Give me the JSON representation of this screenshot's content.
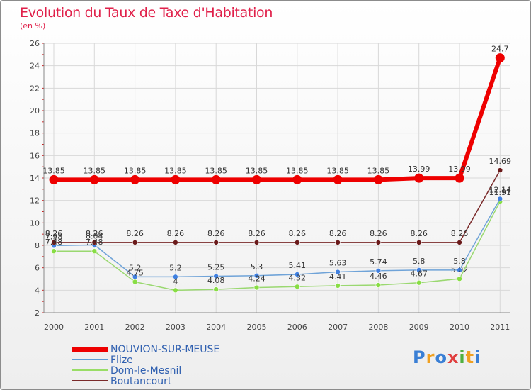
{
  "chart_data": {
    "type": "line",
    "title": "Evolution du Taux de Taxe d'Habitation",
    "unit_label": "(en %)",
    "x": [
      "2000",
      "2001",
      "2002",
      "2003",
      "2004",
      "2005",
      "2006",
      "2007",
      "2008",
      "2009",
      "2010",
      "2011"
    ],
    "ylim": [
      2,
      26
    ],
    "yticks": [
      "2",
      "4",
      "6",
      "8",
      "10",
      "12",
      "14",
      "16",
      "18",
      "20",
      "22",
      "24",
      "26"
    ],
    "grid": true,
    "legend_position": "bottom-left",
    "series": [
      {
        "name": "NOUVION-SUR-MEUSE",
        "color": "#ee0000",
        "values": [
          13.85,
          13.85,
          13.85,
          13.85,
          13.85,
          13.85,
          13.85,
          13.85,
          13.85,
          13.99,
          13.99,
          24.7
        ],
        "labels": [
          "13.85",
          "13.85",
          "13.85",
          "13.85",
          "13.85",
          "13.85",
          "13.85",
          "13.85",
          "13.85",
          "13.99",
          "13.99",
          "24.7"
        ]
      },
      {
        "name": "Flize",
        "color": "#5b9bd5",
        "values": [
          7.98,
          8.04,
          5.2,
          5.2,
          5.25,
          5.3,
          5.41,
          5.63,
          5.74,
          5.8,
          5.8,
          12.14
        ],
        "labels": [
          "7.98",
          "8.04",
          "5.2",
          "5.2",
          "5.25",
          "5.3",
          "5.41",
          "5.63",
          "5.74",
          "5.8",
          "5.8",
          "12.14"
        ]
      },
      {
        "name": "Dom-le-Mesnil",
        "color": "#99dd66",
        "values": [
          7.48,
          7.48,
          4.75,
          4,
          4.08,
          4.24,
          4.32,
          4.41,
          4.46,
          4.67,
          5.02,
          11.91
        ],
        "labels": [
          "7.48",
          "7.48",
          "4.75",
          "4",
          "4.08",
          "4.24",
          "4.32",
          "4.41",
          "4.46",
          "4.67",
          "5.02",
          "11.91"
        ]
      },
      {
        "name": "Boutancourt",
        "color": "#7a2a2a",
        "values": [
          8.26,
          8.26,
          8.26,
          8.26,
          8.26,
          8.26,
          8.26,
          8.26,
          8.26,
          8.26,
          8.26,
          14.69
        ],
        "labels": [
          "8.26",
          "8.26",
          "8.26",
          "8.26",
          "8.26",
          "8.26",
          "8.26",
          "8.26",
          "8.26",
          "8.26",
          "8.26",
          "14.69"
        ]
      }
    ]
  },
  "brand": {
    "letters": [
      "P",
      "r",
      "o",
      "x",
      "i",
      "t",
      "i"
    ],
    "colors": [
      "#3a7fd5",
      "#f0a020",
      "#3a7fd5",
      "#e04040",
      "#50b040",
      "#f0a020",
      "#3a7fd5"
    ]
  }
}
